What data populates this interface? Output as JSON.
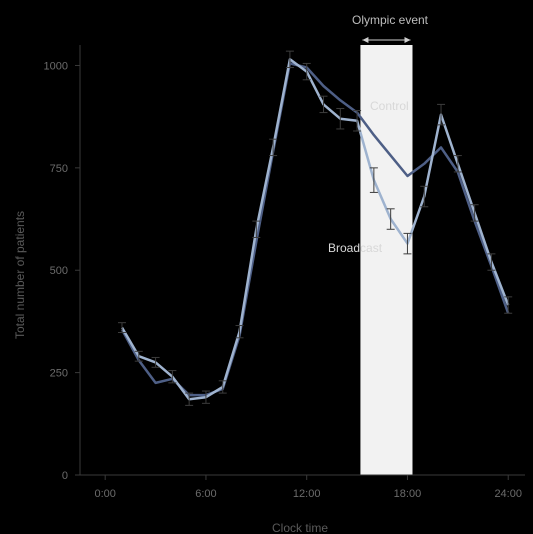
{
  "chart_data": {
    "type": "line",
    "title": "",
    "xlabel": "Clock time",
    "ylabel": "Total number of patients",
    "xlim": [
      -1.5,
      25
    ],
    "ylim": [
      0,
      1050
    ],
    "x_ticks": [
      0,
      6,
      12,
      18,
      24
    ],
    "x_tick_labels": [
      "0:00",
      "6:00",
      "12:00",
      "18:00",
      "24:00"
    ],
    "y_ticks": [
      0,
      250,
      500,
      750,
      1000
    ],
    "y_tick_labels": [
      "0",
      "250",
      "500",
      "750",
      "1000"
    ],
    "grid": false,
    "event": {
      "label": "Olympic event",
      "start": 15.2,
      "end": 18.3,
      "color": "#f2f2f2"
    },
    "x": [
      1,
      2,
      3,
      4,
      5,
      6,
      7,
      8,
      9,
      10,
      11,
      12,
      13,
      14,
      15,
      16,
      17,
      18,
      19,
      20,
      21,
      22,
      23,
      24
    ],
    "series": [
      {
        "name": "Control",
        "color": "#4e5f86",
        "values": [
          355,
          280,
          225,
          235,
          195,
          195,
          210,
          340,
          570,
          790,
          1005,
          995,
          950,
          915,
          885,
          830,
          780,
          730,
          760,
          800,
          740,
          620,
          510,
          395
        ],
        "errors": [
          0,
          0,
          0,
          0,
          0,
          0,
          0,
          0,
          0,
          0,
          0,
          0,
          0,
          0,
          0,
          0,
          0,
          0,
          0,
          0,
          0,
          0,
          0,
          0
        ]
      },
      {
        "name": "Broadcast",
        "color": "#9fb3cf",
        "values": [
          360,
          290,
          275,
          240,
          185,
          190,
          215,
          350,
          600,
          800,
          1015,
          985,
          905,
          870,
          865,
          720,
          625,
          565,
          680,
          880,
          760,
          640,
          520,
          415
        ],
        "errors": [
          12,
          12,
          12,
          15,
          15,
          15,
          15,
          15,
          20,
          20,
          20,
          20,
          20,
          25,
          25,
          30,
          25,
          25,
          25,
          25,
          20,
          20,
          20,
          20
        ]
      }
    ],
    "annotations": [
      "Control",
      "Broadcast"
    ]
  }
}
